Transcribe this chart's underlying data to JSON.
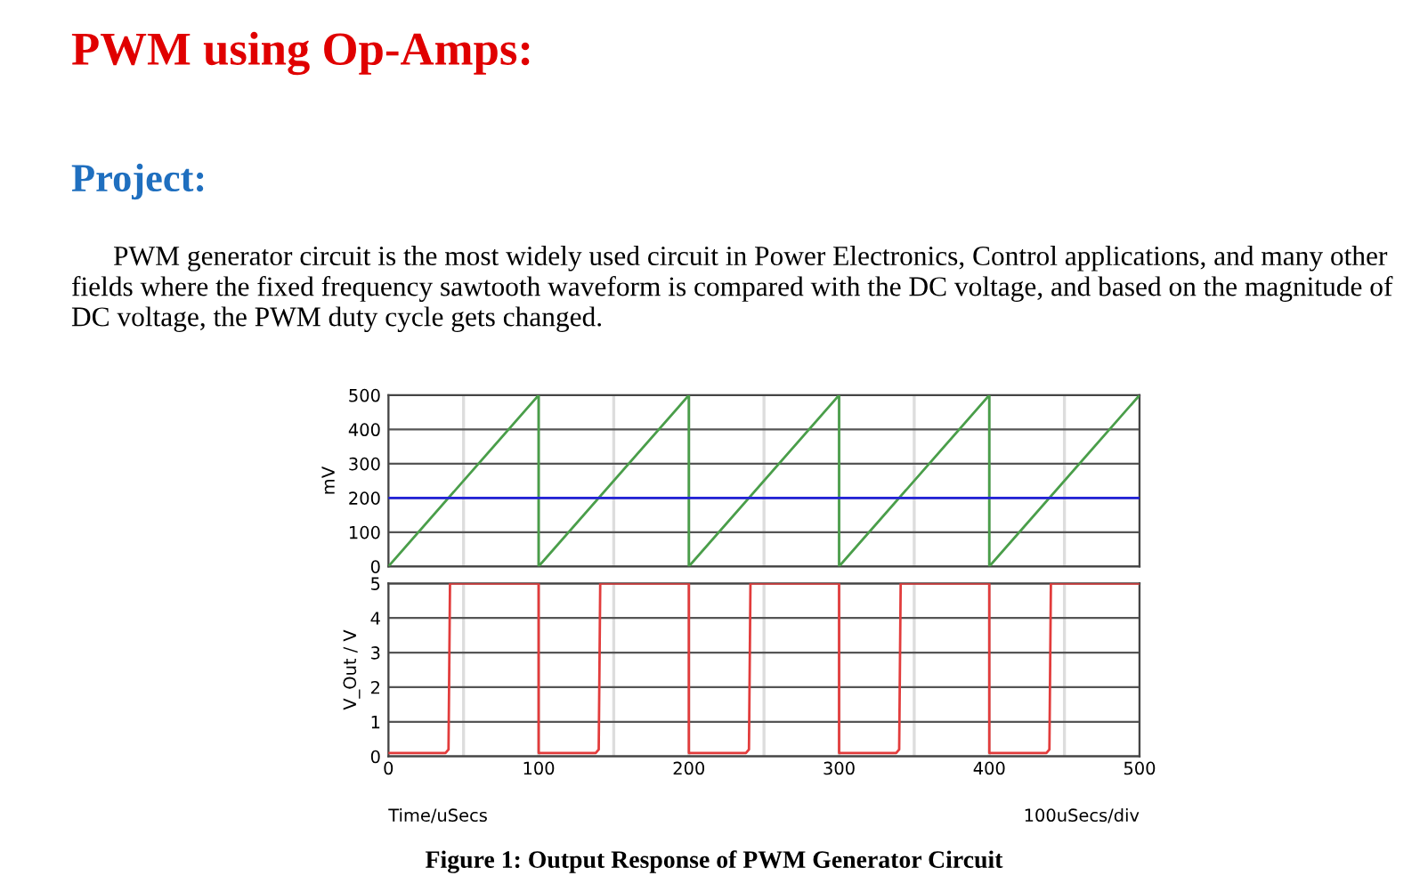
{
  "chart_data": [
    {
      "type": "line",
      "title": "PWM using Op-Amps:",
      "subtitle": "Project:",
      "annotations": [
        "PWM generator circuit is the most widely used circuit in Power Electronics, Control applications, and many other fields where the fixed frequency sawtooth waveform is compared with the DC voltage, and based on the magnitude of DC voltage, the PWM duty cycle gets changed."
      ],
      "ylabel": "mV",
      "xlim": [
        0,
        500
      ],
      "ylim": [
        0,
        500
      ],
      "xticks": [
        0,
        {
          "value": 50,
          "label": null
        },
        100,
        {
          "value": 150,
          "label": null
        },
        200,
        {
          "value": 250,
          "label": null
        },
        300,
        {
          "value": 350,
          "label": null
        },
        400,
        {
          "value": 450,
          "label": null
        },
        500
      ],
      "yticks": [
        0,
        100,
        200,
        300,
        400,
        500
      ],
      "tick_labels": "y",
      "grid": true,
      "series": [
        {
          "color": "#4a9e4a",
          "x": [
            0,
            100,
            100,
            200,
            200,
            300,
            300,
            400,
            400,
            500
          ],
          "values": [
            0,
            500,
            0,
            500,
            0,
            500,
            0,
            500,
            0,
            500
          ]
        },
        {
          "color": "#2323d8",
          "x": [
            0,
            500
          ],
          "values": [
            200,
            200
          ]
        }
      ]
    },
    {
      "type": "line",
      "ylabel": "V_Out / V",
      "xlabel": "Time/uSecs",
      "annotations": [
        "100uSecs/div",
        "Figure 1: Output Response of PWM Generator Circuit"
      ],
      "xlim": [
        0,
        500
      ],
      "ylim": [
        0,
        5
      ],
      "xticks": [
        0,
        {
          "value": 50,
          "label": null
        },
        100,
        {
          "value": 150,
          "label": null
        },
        200,
        {
          "value": 250,
          "label": null
        },
        300,
        {
          "value": 350,
          "label": null
        },
        400,
        {
          "value": 450,
          "label": null
        },
        500
      ],
      "yticks": [
        0,
        1,
        2,
        3,
        4,
        5
      ],
      "grid": true,
      "series": [
        {
          "color": "#e23c3c",
          "x": [
            0,
            38,
            40,
            41,
            100,
            100,
            138,
            140,
            141,
            200,
            200,
            238,
            240,
            241,
            300,
            300,
            338,
            340,
            341,
            400,
            400,
            438,
            440,
            441,
            500
          ],
          "values": [
            0.1,
            0.1,
            0.2,
            5,
            5,
            0.1,
            0.1,
            0.2,
            5,
            5,
            0.1,
            0.1,
            0.2,
            5,
            5,
            0.1,
            0.1,
            0.2,
            5,
            5,
            0.1,
            0.1,
            0.2,
            5,
            5
          ]
        }
      ]
    }
  ]
}
